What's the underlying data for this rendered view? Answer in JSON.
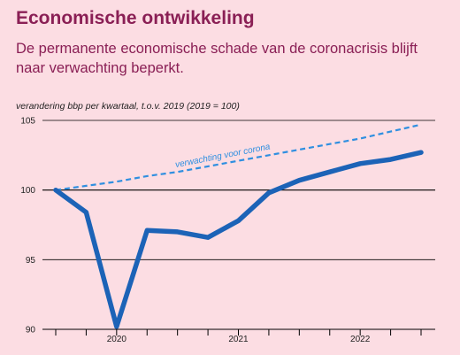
{
  "header": {
    "title": "Economische ontwikkeling",
    "subtitle": "De permanente economische  schade van de coronacrisis blijft naar verwachting beperkt."
  },
  "colors": {
    "background": "#fcdde3",
    "title": "#8a1f55",
    "actual_line": "#1c63b7",
    "forecast_line": "#2f8fe0",
    "gridline": "#000000"
  },
  "chart_data": {
    "type": "line",
    "title": "Economische ontwikkeling",
    "ylabel": "verandering bbp per kwartaal, t.o.v. 2019 (2019 = 100)",
    "xlabel": "",
    "ylim": [
      90,
      105
    ],
    "yticks": [
      90,
      95,
      100,
      105
    ],
    "x_quarters": [
      "2019-Q4",
      "2020-Q1",
      "2020-Q2",
      "2020-Q3",
      "2020-Q4",
      "2021-Q1",
      "2021-Q2",
      "2021-Q3",
      "2021-Q4",
      "2022-Q1",
      "2022-Q2",
      "2022-Q3",
      "2022-Q4"
    ],
    "xtick_labels": [
      {
        "label": "2020",
        "quarter": "2020-Q2"
      },
      {
        "label": "2021",
        "quarter": "2021-Q2"
      },
      {
        "label": "2022",
        "quarter": "2022-Q2"
      }
    ],
    "grid": "horizontal",
    "series": [
      {
        "style": "solid",
        "values": [
          100.0,
          98.4,
          90.2,
          97.1,
          97.0,
          96.6,
          97.8,
          99.8,
          100.7,
          101.3,
          101.9,
          102.2,
          102.7
        ]
      },
      {
        "name": "verwachting voor corona",
        "style": "dashed",
        "values": [
          100.0,
          100.3,
          100.6,
          101.0,
          101.3,
          101.7,
          102.1,
          102.5,
          102.9,
          103.3,
          103.7,
          104.2,
          104.7
        ]
      }
    ]
  }
}
